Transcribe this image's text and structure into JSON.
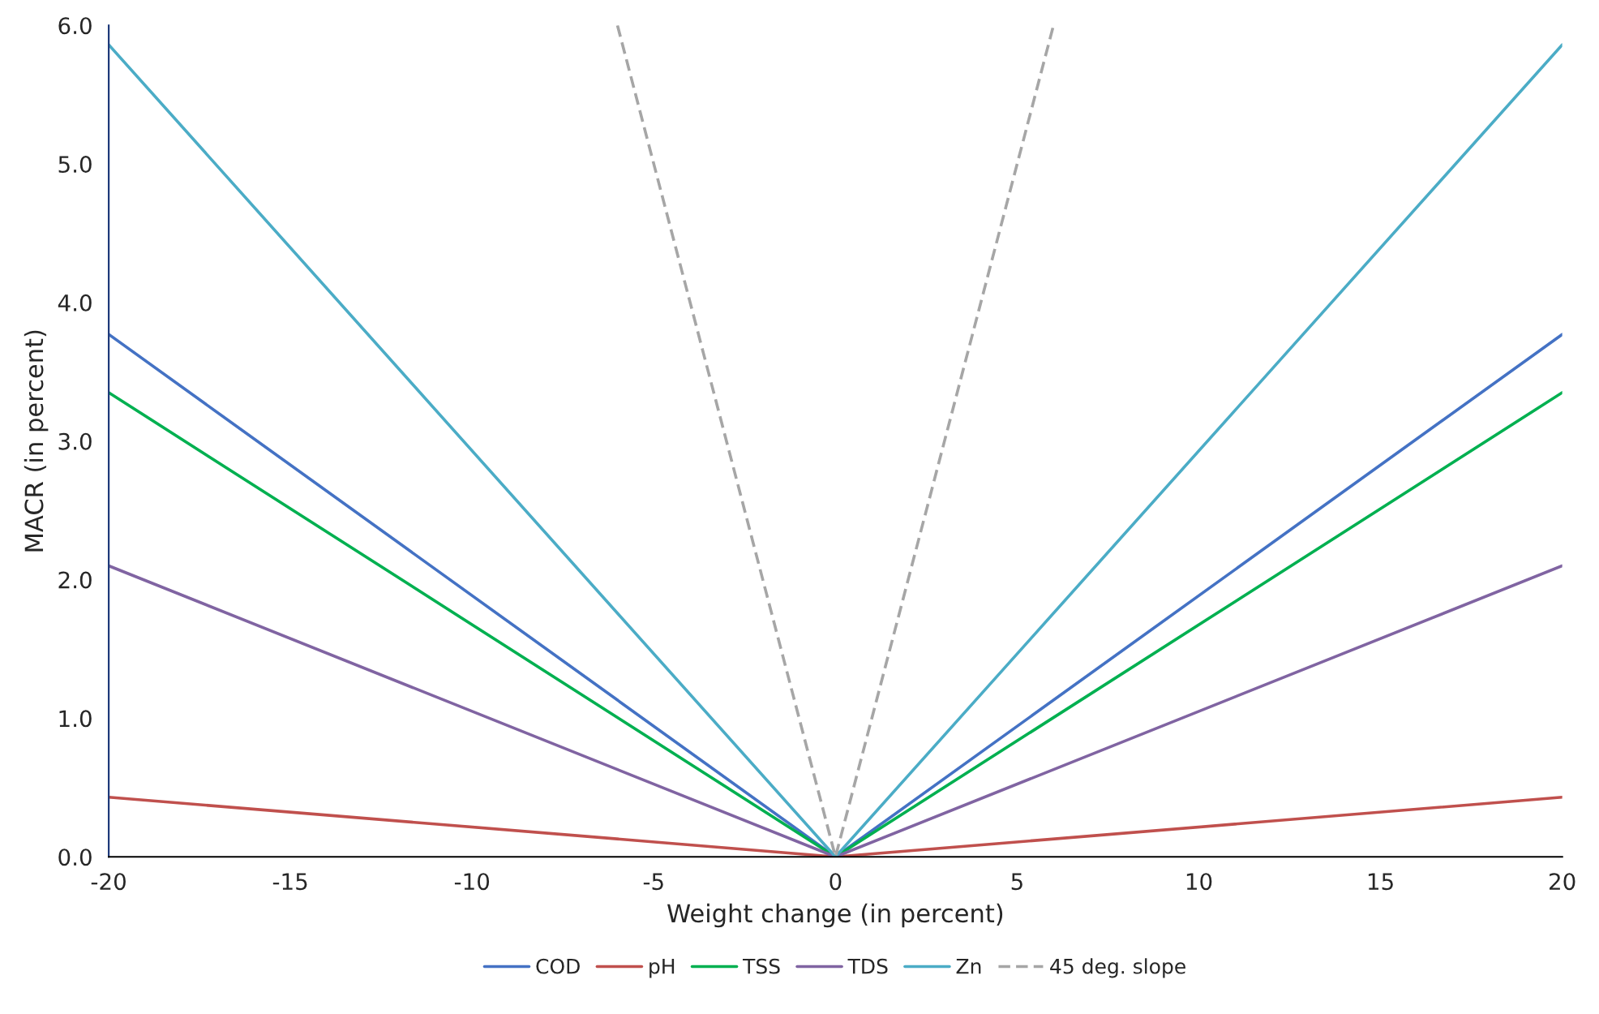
{
  "chart_data": {
    "type": "line",
    "xlabel": "Weight change (in percent)",
    "ylabel": "MACR (in percent)",
    "x": [
      -20,
      0,
      20
    ],
    "series": [
      {
        "name": "COD",
        "color": "#4472c4",
        "values": [
          3.77,
          0,
          3.77
        ]
      },
      {
        "name": "pH",
        "color": "#c0504d",
        "values": [
          0.43,
          0,
          0.43
        ]
      },
      {
        "name": "TSS",
        "color": "#00b050",
        "values": [
          3.35,
          0,
          3.35
        ]
      },
      {
        "name": "TDS",
        "color": "#8064a2",
        "values": [
          2.1,
          0,
          2.1
        ]
      },
      {
        "name": "Zn",
        "color": "#4bacc6",
        "values": [
          5.86,
          0,
          5.86
        ]
      },
      {
        "name": "45 deg. slope",
        "color": "#a6a6a6",
        "line_style": "dashed",
        "x": [
          -6,
          0,
          6
        ],
        "values": [
          6,
          0,
          6
        ]
      }
    ],
    "xlim": [
      -20,
      20
    ],
    "xticks": [
      -20,
      -15,
      -10,
      -5,
      0,
      5,
      10,
      15,
      20
    ],
    "ylim": [
      0,
      6
    ],
    "yticks": [
      {
        "value": 0,
        "label": "0.0"
      },
      {
        "value": 1,
        "label": "1.0"
      },
      {
        "value": 2,
        "label": "2.0"
      },
      {
        "value": 3,
        "label": "3.0"
      },
      {
        "value": 4,
        "label": "4.0"
      },
      {
        "value": 5,
        "label": "5.0"
      },
      {
        "value": 6,
        "label": "6.0"
      }
    ],
    "grid": false,
    "legend": "bottom",
    "line_style": "solid"
  }
}
